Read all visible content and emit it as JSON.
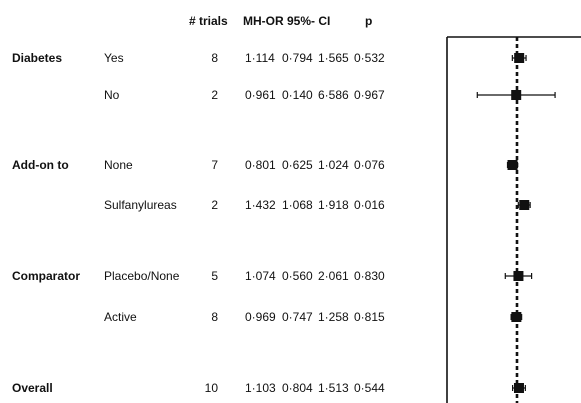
{
  "headers": {
    "trials": "# trials",
    "mhor": "MH-OR",
    "ci": "95%- CI",
    "p": "p"
  },
  "rows": [
    {
      "group": "Diabetes",
      "sub": "Yes",
      "trials": "8",
      "or": "1·114",
      "lo": "0·794",
      "hi": "1·565",
      "p": "0·532"
    },
    {
      "group": "",
      "sub": "No",
      "trials": "2",
      "or": "0·961",
      "lo": "0·140",
      "hi": "6·586",
      "p": "0·967"
    },
    {
      "group": "Add-on to",
      "sub": "None",
      "trials": "7",
      "or": "0·801",
      "lo": "0·625",
      "hi": "1·024",
      "p": "0·076"
    },
    {
      "group": "",
      "sub": "Sulfanylureas",
      "trials": "2",
      "or": "1·432",
      "lo": "1·068",
      "hi": "1·918",
      "p": "0·016"
    },
    {
      "group": "Comparator",
      "sub": "Placebo/None",
      "trials": "5",
      "or": "1·074",
      "lo": "0·560",
      "hi": "2·061",
      "p": "0·830"
    },
    {
      "group": "",
      "sub": "Active",
      "trials": "8",
      "or": "0·969",
      "lo": "0·747",
      "hi": "1·258",
      "p": "0·815"
    },
    {
      "group": "Overall",
      "sub": "",
      "trials": "10",
      "or": "1·103",
      "lo": "0·804",
      "hi": "1·513",
      "p": "0·544"
    }
  ],
  "chart_data": {
    "type": "scatter",
    "subtype": "forest",
    "x_scale": "log",
    "reference_line": 1,
    "reference_line_style": "dashed",
    "points": [
      {
        "label": "Diabetes Yes",
        "or": 1.114,
        "lo": 0.794,
        "hi": 1.565
      },
      {
        "label": "Diabetes No",
        "or": 0.961,
        "lo": 0.14,
        "hi": 6.586
      },
      {
        "label": "Add-on to None",
        "or": 0.801,
        "lo": 0.625,
        "hi": 1.024
      },
      {
        "label": "Add-on to Sulfanylureas",
        "or": 1.432,
        "lo": 1.068,
        "hi": 1.918
      },
      {
        "label": "Comparator Placebo/None",
        "or": 1.074,
        "lo": 0.56,
        "hi": 2.061
      },
      {
        "label": "Comparator Active",
        "or": 0.969,
        "lo": 0.747,
        "hi": 1.258
      },
      {
        "label": "Overall",
        "or": 1.103,
        "lo": 0.804,
        "hi": 1.513
      }
    ],
    "colors": {
      "marker": "#111111",
      "axis": "#111111"
    }
  }
}
